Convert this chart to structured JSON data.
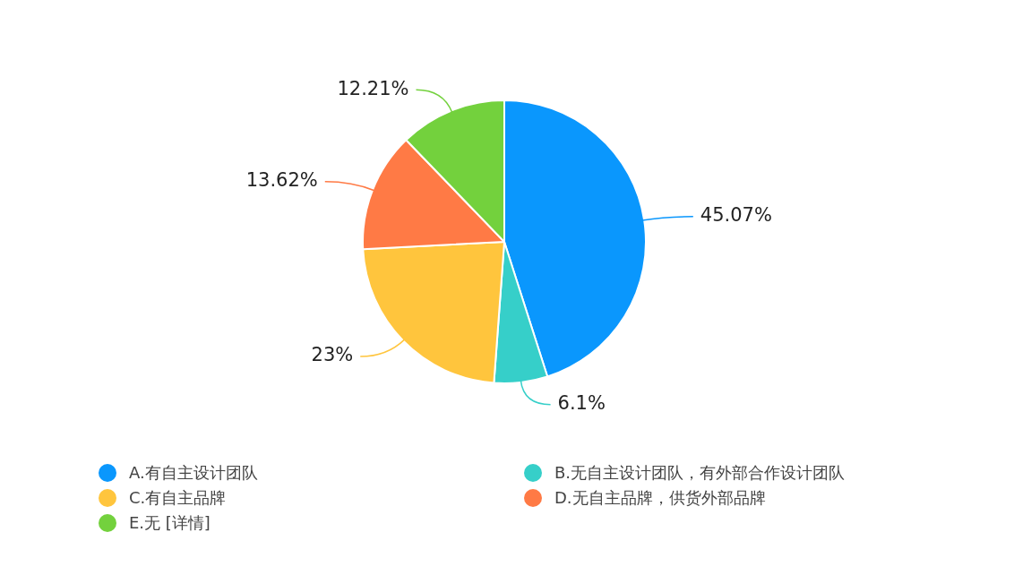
{
  "chart_data": {
    "type": "pie",
    "categories": [
      "A.有自主设计团队",
      "B.无自主设计团队，有外部合作设计团队",
      "C.有自主品牌",
      "D.无自主品牌，供货外部品牌",
      "E.无 [详情]"
    ],
    "values": [
      45.07,
      6.1,
      23,
      13.62,
      12.21
    ],
    "value_labels": [
      "45.07%",
      "6.1%",
      "23%",
      "13.62%",
      "12.21%"
    ],
    "colors": [
      "#0a97fd",
      "#36cfc9",
      "#ffc53d",
      "#ff7a45",
      "#73d13d"
    ],
    "legend": "bottom"
  }
}
